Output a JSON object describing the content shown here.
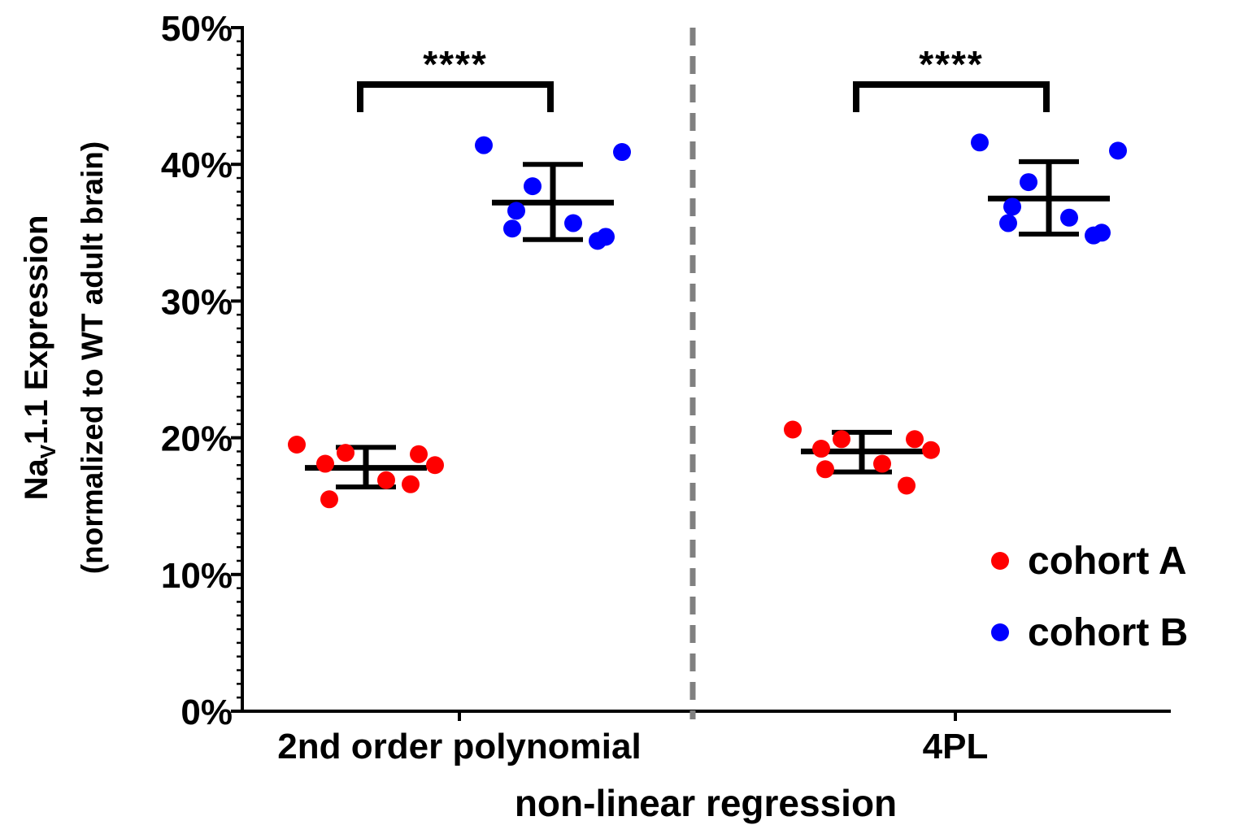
{
  "chart_data": {
    "type": "scatter",
    "title": "",
    "ylabel_line1_main": "Na",
    "ylabel_line1_sub": "V",
    "ylabel_line1_rest": "1.1 Expression",
    "ylabel_line2": "(normalized to WT adult brain)",
    "xlabel": "non-linear regression",
    "categories": [
      "2nd order polynomial",
      "4PL"
    ],
    "ylim": [
      0,
      50
    ],
    "y_ticks": [
      "0%",
      "10%",
      "20%",
      "30%",
      "40%",
      "50%"
    ],
    "y_tick_values": [
      0,
      10,
      20,
      30,
      40,
      50
    ],
    "y_minor_step": 1,
    "series": [
      {
        "name": "cohort A",
        "color": "#ff0000",
        "groups": [
          {
            "category": "2nd order polynomial",
            "points": [
              19.5,
              18.0,
              18.9,
              16.9,
              18.1,
              16.6,
              15.5,
              18.8
            ],
            "mean": 17.8,
            "sd_low": 16.4,
            "sd_high": 19.3
          },
          {
            "category": "4PL",
            "points": [
              20.6,
              19.1,
              19.9,
              18.1,
              19.2,
              16.5,
              17.7,
              19.9
            ],
            "mean": 19.0,
            "sd_low": 17.5,
            "sd_high": 20.4
          }
        ]
      },
      {
        "name": "cohort B",
        "color": "#0000ff",
        "groups": [
          {
            "category": "2nd order polynomial",
            "points": [
              41.4,
              40.9,
              38.4,
              35.7,
              35.3,
              34.4,
              36.6,
              34.7
            ],
            "mean": 37.2,
            "sd_low": 34.5,
            "sd_high": 40.0
          },
          {
            "category": "4PL",
            "points": [
              41.6,
              41.0,
              38.7,
              36.1,
              35.7,
              34.8,
              36.9,
              35.0
            ],
            "mean": 37.5,
            "sd_low": 34.9,
            "sd_high": 40.2
          }
        ]
      }
    ],
    "significance": [
      {
        "category": "2nd order polynomial",
        "label": "****"
      },
      {
        "category": "4PL",
        "label": "****"
      }
    ],
    "divider": {
      "style": "dashed",
      "color": "#808080"
    },
    "legend_position": "bottom-right",
    "grid": false
  }
}
